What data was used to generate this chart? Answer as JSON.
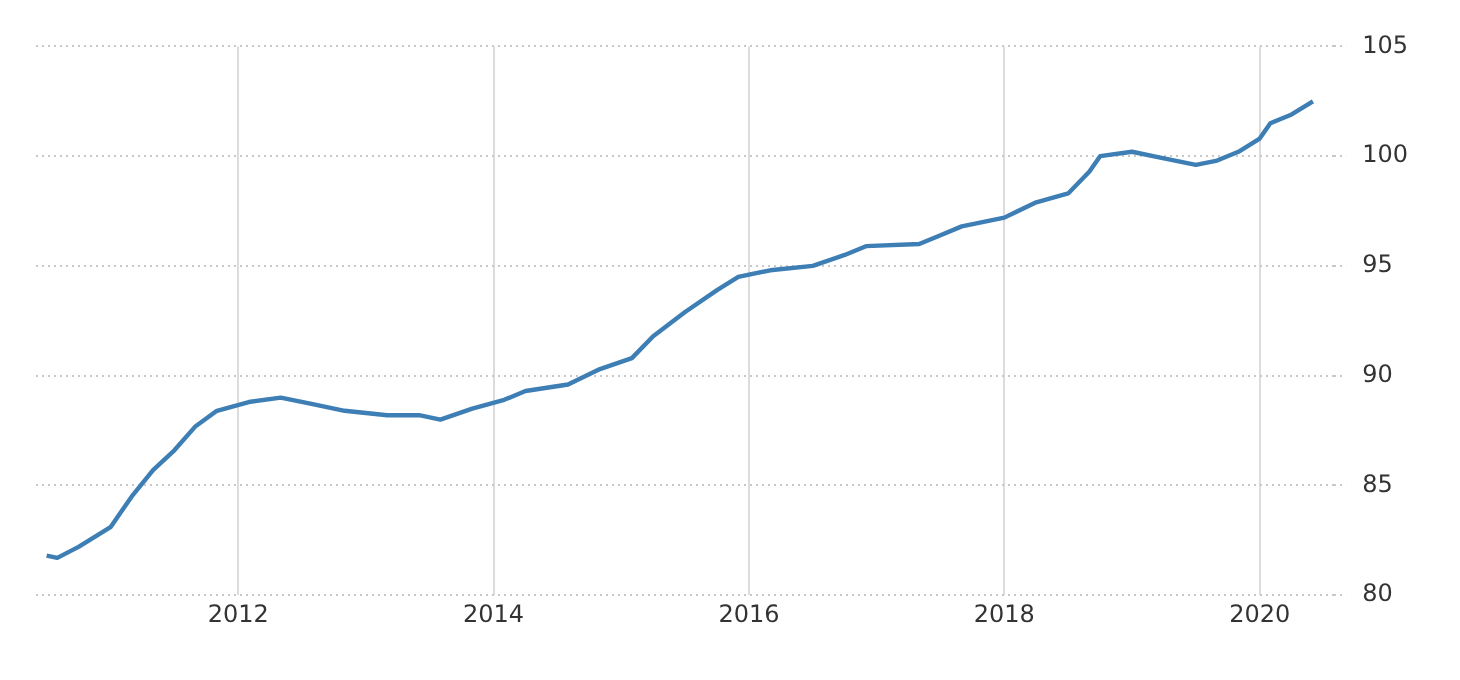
{
  "chart_data": {
    "type": "line",
    "x": [
      "2010-07",
      "2010-08",
      "2010-10",
      "2011-01",
      "2011-03",
      "2011-05",
      "2011-07",
      "2011-09",
      "2011-11",
      "2012-02",
      "2012-05",
      "2012-08",
      "2012-11",
      "2013-03",
      "2013-06",
      "2013-08",
      "2013-11",
      "2014-02",
      "2014-04",
      "2014-08",
      "2014-11",
      "2015-02",
      "2015-04",
      "2015-07",
      "2015-10",
      "2015-12",
      "2016-03",
      "2016-07",
      "2016-10",
      "2016-12",
      "2017-05",
      "2017-07",
      "2017-09",
      "2018-01",
      "2018-04",
      "2018-07",
      "2018-09",
      "2018-10",
      "2019-01",
      "2019-04",
      "2019-07",
      "2019-09",
      "2019-11",
      "2020-01",
      "2020-02",
      "2020-04",
      "2020-06"
    ],
    "series": [
      {
        "color": "#3d7eb5",
        "values": [
          81.8,
          81.7,
          82.2,
          83.1,
          84.5,
          85.7,
          86.6,
          87.7,
          88.4,
          88.8,
          89.0,
          88.7,
          88.4,
          88.2,
          88.2,
          88.0,
          88.5,
          88.9,
          89.3,
          89.6,
          90.3,
          90.8,
          91.8,
          92.9,
          93.9,
          94.5,
          94.8,
          95.0,
          95.5,
          95.9,
          96.0,
          96.4,
          96.8,
          97.2,
          97.9,
          98.3,
          99.3,
          100.0,
          100.2,
          99.9,
          99.6,
          99.8,
          100.2,
          100.8,
          101.5,
          101.9,
          102.5
        ]
      }
    ],
    "xlim": [
      "2010-06",
      "2020-08"
    ],
    "xticks": [
      "2012",
      "2014",
      "2016",
      "2018",
      "2020"
    ],
    "ylim": [
      80,
      105
    ],
    "yticks": [
      80,
      85,
      90,
      95,
      100,
      105
    ],
    "grid": true,
    "legend": false,
    "marker": "none",
    "line_style": "solid"
  }
}
